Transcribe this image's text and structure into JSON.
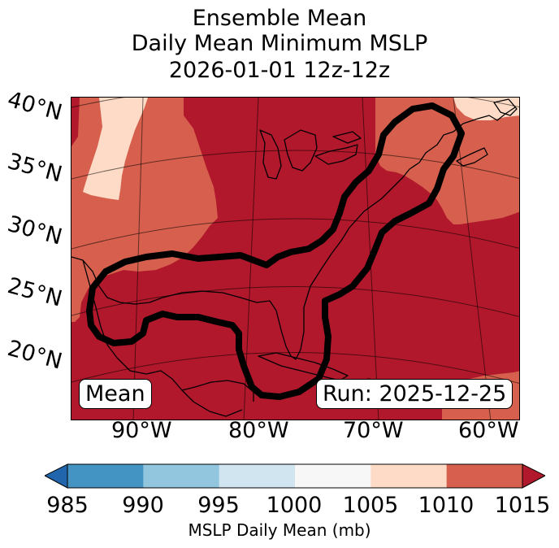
{
  "title": {
    "line1": "Ensemble Mean",
    "line2": "Daily Mean Minimum MSLP",
    "line3": "2026-01-01 12z-12z"
  },
  "lat_labels": [
    "40°N",
    "35°N",
    "30°N",
    "25°N",
    "20°N"
  ],
  "lon_labels": [
    "90°W",
    "80°W",
    "70°W",
    "60°W"
  ],
  "annotations": {
    "mean": "Mean",
    "run": "Run: 2025-12-25"
  },
  "colorbar": {
    "ticks": [
      "985",
      "990",
      "995",
      "1000",
      "1005",
      "1010",
      "1015"
    ],
    "colors": [
      "#2166ac",
      "#4393c3",
      "#92c5de",
      "#d1e5f0",
      "#f7f7f7",
      "#fddbc7",
      "#d6604d",
      "#b2182b"
    ],
    "label": "MSLP Daily Mean (mb)"
  },
  "field_colors": {
    "dominant": "#b2182b",
    "mid": "#d6604d",
    "light": "#fddbc7"
  },
  "contour": {
    "color": "#000000"
  }
}
